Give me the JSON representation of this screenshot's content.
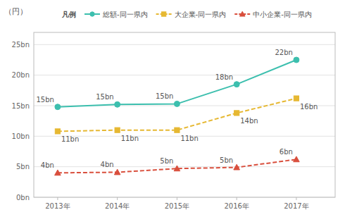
{
  "chart_data": {
    "type": "line",
    "y_label": "（円）",
    "legend_title": "凡例",
    "legend": "top",
    "grid": true,
    "data_labels": true,
    "x": [
      2013,
      2014,
      2015,
      2016,
      2017
    ],
    "xlim": [
      2012.6,
      2017.65
    ],
    "xticks": [
      {
        "value": 2013,
        "label": "2013年"
      },
      {
        "value": 2014,
        "label": "2014年"
      },
      {
        "value": 2015,
        "label": "2015年"
      },
      {
        "value": 2016,
        "label": "2016年"
      },
      {
        "value": 2017,
        "label": "2017年"
      }
    ],
    "ylim": [
      0,
      27
    ],
    "yticks": [
      {
        "value": 0,
        "label": "0bn"
      },
      {
        "value": 5,
        "label": "5bn"
      },
      {
        "value": 10,
        "label": "10bn"
      },
      {
        "value": 15,
        "label": "15bn"
      },
      {
        "value": 20,
        "label": "20bn"
      },
      {
        "value": 25,
        "label": "25bn"
      }
    ],
    "series": [
      {
        "name": "総額-同一県内",
        "color": "#3cbfae",
        "marker": "circle",
        "line_style": "solid",
        "values": [
          14.8,
          15.2,
          15.3,
          18.5,
          22.5
        ],
        "value_labels": [
          "15bn",
          "15bn",
          "15bn",
          "18bn",
          "22bn"
        ]
      },
      {
        "name": "大企業-同一県内",
        "color": "#e6b832",
        "marker": "square",
        "line_style": "dashed",
        "values": [
          10.8,
          11.0,
          11.0,
          13.8,
          16.2
        ],
        "value_labels": [
          "11bn",
          "11bn",
          "11bn",
          "14bn",
          "16bn"
        ]
      },
      {
        "name": "中小企業-同一県内",
        "color": "#d94f3d",
        "marker": "triangle",
        "line_style": "dashed",
        "values": [
          4.0,
          4.1,
          4.7,
          4.9,
          6.2
        ],
        "value_labels": [
          "4bn",
          "4bn",
          "5bn",
          "5bn",
          "6bn"
        ]
      }
    ]
  }
}
